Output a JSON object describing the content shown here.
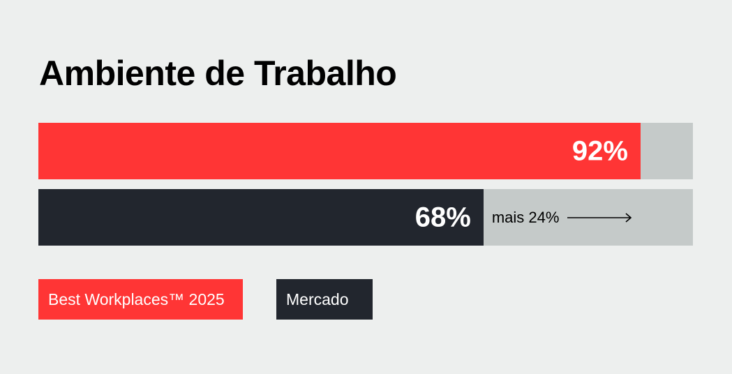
{
  "chart_data": {
    "type": "bar",
    "orientation": "horizontal",
    "title": "Ambiente de Trabalho",
    "xlim": [
      0,
      100
    ],
    "grid": false,
    "legend_placement": "bottom-left",
    "series": [
      {
        "name": "Best Workplaces™ 2025",
        "value": 92,
        "value_label": "92%",
        "color": "#ff3535"
      },
      {
        "name": "Mercado",
        "value": 68,
        "value_label": "68%",
        "color": "#22262e"
      }
    ],
    "track_color": "#c5cac9",
    "annotation": {
      "text": "mais 24%",
      "arrow": "right"
    }
  }
}
